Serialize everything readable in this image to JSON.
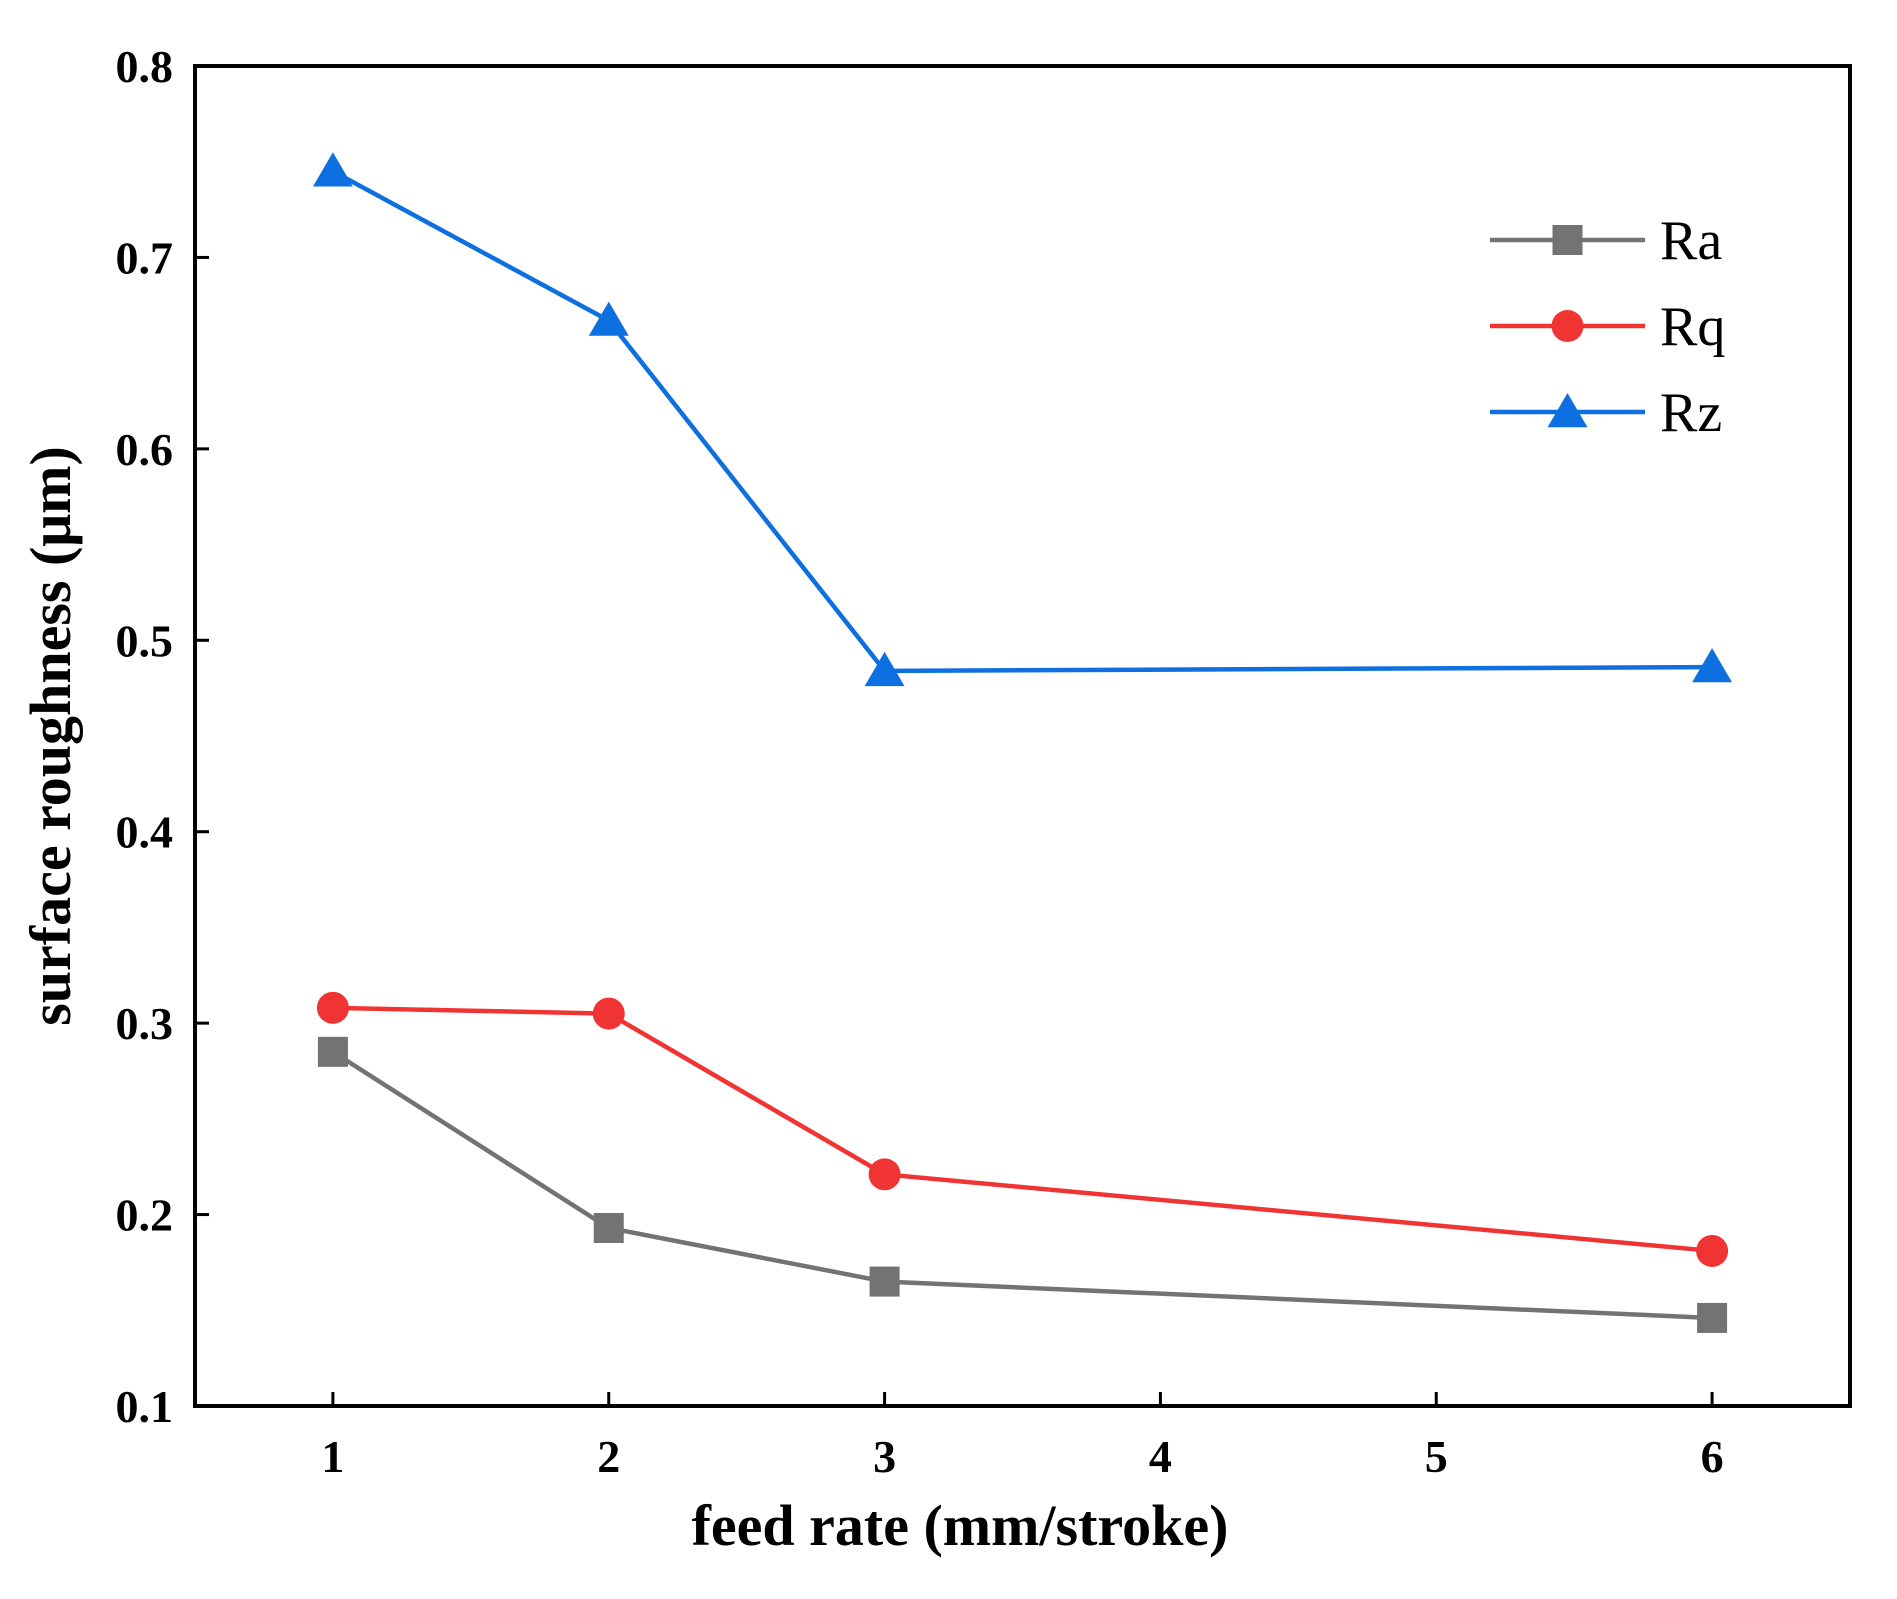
{
  "chart_data": {
    "type": "line",
    "title": "",
    "xlabel": "feed rate (mm/stroke)",
    "ylabel": "surface roughness (μm)",
    "xlim": [
      0.5,
      6.5
    ],
    "ylim": [
      0.1,
      0.8
    ],
    "xticks": [
      1,
      2,
      3,
      4,
      5,
      6
    ],
    "yticks": [
      0.1,
      0.2,
      0.3,
      0.4,
      0.5,
      0.6,
      0.7,
      0.8
    ],
    "ytick_labels": [
      "0.1",
      "0.2",
      "0.3",
      "0.4",
      "0.5",
      "0.6",
      "0.7",
      "0.8"
    ],
    "xtick_labels": [
      "1",
      "2",
      "3",
      "4",
      "5",
      "6"
    ],
    "grid": false,
    "legend_position": "top-right",
    "series": [
      {
        "name": "Ra",
        "color": "#737373",
        "marker": "square",
        "x": [
          1,
          2,
          3,
          6
        ],
        "values": [
          0.285,
          0.193,
          0.165,
          0.146
        ]
      },
      {
        "name": "Rq",
        "color": "#f03434",
        "marker": "circle",
        "x": [
          1,
          2,
          3,
          6
        ],
        "values": [
          0.308,
          0.305,
          0.221,
          0.181
        ]
      },
      {
        "name": "Rz",
        "color": "#0d6fe0",
        "marker": "triangle",
        "x": [
          1,
          2,
          3,
          6
        ],
        "values": [
          0.745,
          0.667,
          0.484,
          0.486
        ]
      }
    ]
  }
}
